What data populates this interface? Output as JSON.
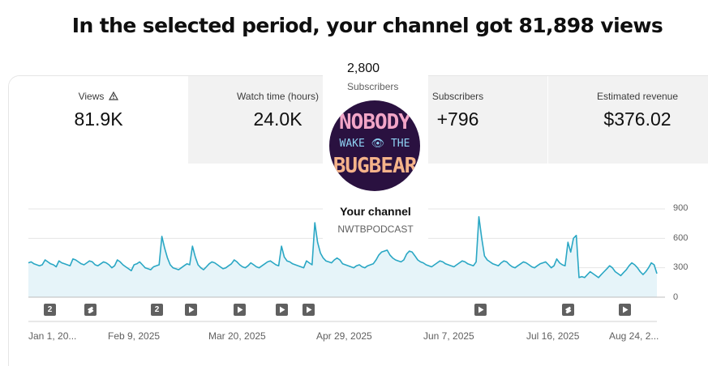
{
  "headline": "In the selected period, your channel got 81,898 views",
  "tabs": [
    {
      "label": "Views",
      "value": "81.9K",
      "active": true,
      "warning_icon": "warning-triangle-icon"
    },
    {
      "label": "Watch time (hours)",
      "value": "24.0K",
      "active": false
    },
    {
      "label": "Subscribers",
      "value": "+796",
      "active": false
    },
    {
      "label": "Estimated revenue",
      "value": "$376.02",
      "active": false
    }
  ],
  "channel_popup": {
    "subscriber_count": "2,800",
    "subscriber_label": "Subscribers",
    "avatar_text": [
      "NOBODY",
      "WAKE 👁 THE",
      "BUGBEAR"
    ],
    "name": "Your channel",
    "handle": "NWTBPODCAST"
  },
  "markers": [
    {
      "type": "count",
      "label": "2"
    },
    {
      "type": "shorts",
      "icon": "shorts-icon"
    },
    {
      "type": "count",
      "label": "2"
    },
    {
      "type": "video",
      "icon": "play-icon"
    },
    {
      "type": "video",
      "icon": "play-icon"
    },
    {
      "type": "video",
      "icon": "play-icon"
    },
    {
      "type": "video",
      "icon": "play-icon"
    },
    {
      "type": "video",
      "icon": "play-icon"
    },
    {
      "type": "shorts",
      "icon": "shorts-icon"
    },
    {
      "type": "video",
      "icon": "play-icon"
    }
  ],
  "colors": {
    "line": "#2aa7c4",
    "fill": "#e6f4f9",
    "grid": "#e5e5e5"
  },
  "chart_data": {
    "type": "area",
    "series": [
      {
        "values": [
          350,
          360,
          340,
          330,
          320,
          330,
          380,
          360,
          340,
          330,
          310,
          370,
          350,
          340,
          330,
          320,
          390,
          380,
          360,
          340,
          330,
          350,
          370,
          360,
          330,
          320,
          340,
          360,
          350,
          330,
          300,
          320,
          380,
          360,
          330,
          310,
          290,
          270,
          330,
          340,
          360,
          330,
          300,
          290,
          280,
          310,
          320,
          330,
          620,
          500,
          400,
          330,
          300,
          290,
          280,
          300,
          320,
          340,
          330,
          520,
          410,
          330,
          300,
          280,
          310,
          340,
          360,
          350,
          330,
          310,
          290,
          300,
          320,
          340,
          380,
          360,
          330,
          310,
          300,
          320,
          350,
          330,
          310,
          300,
          320,
          340,
          360,
          370,
          350,
          330,
          320,
          520,
          410,
          370,
          360,
          340,
          330,
          320,
          310,
          300,
          370,
          350,
          330,
          760,
          560,
          450,
          400,
          370,
          360,
          350,
          380,
          400,
          380,
          340,
          330,
          320,
          310,
          300,
          320,
          330,
          310,
          300,
          320,
          330,
          340,
          380,
          430,
          460,
          470,
          480,
          430,
          400,
          380,
          370,
          360,
          380,
          440,
          470,
          460,
          420,
          380,
          360,
          350,
          330,
          320,
          310,
          330,
          350,
          370,
          360,
          340,
          330,
          320,
          310,
          330,
          350,
          370,
          360,
          340,
          330,
          320,
          360,
          820,
          600,
          420,
          380,
          360,
          340,
          330,
          320,
          350,
          370,
          360,
          330,
          310,
          300,
          320,
          340,
          360,
          350,
          330,
          310,
          300,
          320,
          340,
          350,
          360,
          330,
          300,
          320,
          390,
          350,
          330,
          320,
          560,
          460,
          600,
          630,
          200,
          210,
          200,
          230,
          260,
          240,
          220,
          200,
          230,
          260,
          290,
          320,
          300,
          260,
          240,
          220,
          250,
          280,
          320,
          350,
          330,
          300,
          260,
          230,
          260,
          300,
          350,
          330,
          240
        ]
      }
    ],
    "x_tick_labels": [
      "Jan 1, 20...",
      "Feb 9, 2025",
      "Mar 20, 2025",
      "Apr 29, 2025",
      "Jun 7, 2025",
      "Jul 16, 2025",
      "Aug 24, 2..."
    ],
    "y_tick_labels": [
      "900",
      "600",
      "300",
      "0"
    ],
    "ylim": [
      0,
      900
    ],
    "grid": true
  }
}
